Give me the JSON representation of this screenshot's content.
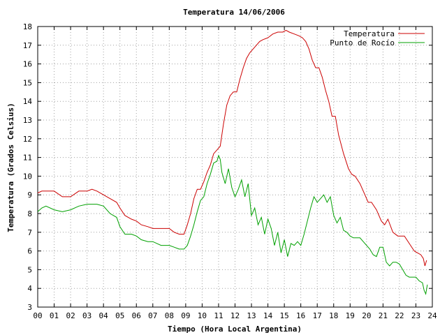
{
  "chart_data": {
    "type": "line",
    "title": "Temperatura 14/06/2006",
    "xlabel": "Tiempo (Hora Local Argentina)",
    "ylabel": "Temperatura (Grados Celsius)",
    "xlim": [
      0,
      24
    ],
    "ylim": [
      3,
      18
    ],
    "x_ticks": [
      "00",
      "01",
      "02",
      "03",
      "04",
      "05",
      "06",
      "07",
      "08",
      "09",
      "10",
      "11",
      "12",
      "13",
      "14",
      "15",
      "16",
      "17",
      "18",
      "19",
      "20",
      "21",
      "22",
      "23",
      "24"
    ],
    "y_ticks": [
      "3",
      "4",
      "5",
      "6",
      "7",
      "8",
      "9",
      "10",
      "11",
      "12",
      "13",
      "14",
      "15",
      "16",
      "17",
      "18"
    ],
    "grid": true,
    "legend_position": "top-right",
    "series": [
      {
        "name": "Temperatura",
        "color": "#cc0000",
        "x": [
          0.0,
          0.25,
          0.5,
          1.0,
          1.5,
          2.0,
          2.5,
          3.0,
          3.3,
          3.6,
          4.0,
          4.4,
          4.8,
          5.0,
          5.3,
          5.7,
          6.0,
          6.3,
          6.7,
          7.0,
          7.5,
          8.0,
          8.3,
          8.6,
          8.9,
          9.1,
          9.3,
          9.5,
          9.7,
          9.9,
          10.1,
          10.3,
          10.5,
          10.7,
          10.9,
          11.1,
          11.3,
          11.5,
          11.7,
          11.9,
          12.1,
          12.3,
          12.5,
          12.7,
          12.9,
          13.1,
          13.3,
          13.5,
          13.7,
          14.0,
          14.3,
          14.6,
          14.9,
          15.1,
          15.3,
          15.6,
          15.9,
          16.1,
          16.3,
          16.5,
          16.7,
          16.9,
          17.1,
          17.3,
          17.5,
          17.7,
          17.9,
          18.1,
          18.3,
          18.6,
          18.9,
          19.1,
          19.3,
          19.6,
          19.9,
          20.1,
          20.3,
          20.6,
          20.9,
          21.1,
          21.3,
          21.6,
          21.9,
          22.1,
          22.3,
          22.6,
          22.9,
          23.1,
          23.3,
          23.45,
          23.55,
          23.65
        ],
        "y": [
          9.1,
          9.2,
          9.2,
          9.2,
          8.9,
          8.9,
          9.2,
          9.2,
          9.3,
          9.2,
          9.0,
          8.8,
          8.6,
          8.3,
          7.9,
          7.7,
          7.6,
          7.4,
          7.3,
          7.2,
          7.2,
          7.2,
          7.0,
          6.9,
          6.9,
          7.4,
          8.0,
          8.8,
          9.3,
          9.3,
          9.7,
          10.2,
          10.6,
          11.2,
          11.4,
          11.6,
          12.8,
          13.8,
          14.3,
          14.5,
          14.5,
          15.2,
          15.8,
          16.3,
          16.6,
          16.8,
          17.0,
          17.2,
          17.3,
          17.4,
          17.6,
          17.7,
          17.7,
          17.8,
          17.7,
          17.6,
          17.5,
          17.4,
          17.2,
          16.8,
          16.2,
          15.8,
          15.8,
          15.3,
          14.6,
          14.0,
          13.2,
          13.2,
          12.2,
          11.2,
          10.4,
          10.1,
          10.0,
          9.6,
          9.0,
          8.6,
          8.6,
          8.2,
          7.6,
          7.4,
          7.7,
          7.0,
          6.8,
          6.8,
          6.8,
          6.4,
          6.0,
          5.9,
          5.8,
          5.6,
          5.2,
          5.5
        ]
      },
      {
        "name": "Punto de Rocío",
        "color": "#00a000",
        "x": [
          0.0,
          0.25,
          0.5,
          1.0,
          1.5,
          2.0,
          2.5,
          3.0,
          3.3,
          3.6,
          4.0,
          4.4,
          4.8,
          5.0,
          5.3,
          5.7,
          6.0,
          6.3,
          6.7,
          7.0,
          7.5,
          8.0,
          8.3,
          8.6,
          8.9,
          9.1,
          9.3,
          9.5,
          9.7,
          9.9,
          10.1,
          10.3,
          10.5,
          10.7,
          10.9,
          11.0,
          11.1,
          11.2,
          11.4,
          11.6,
          11.8,
          12.0,
          12.2,
          12.4,
          12.6,
          12.8,
          13.0,
          13.2,
          13.4,
          13.6,
          13.8,
          14.0,
          14.2,
          14.4,
          14.6,
          14.8,
          15.0,
          15.2,
          15.4,
          15.6,
          15.8,
          16.0,
          16.2,
          16.4,
          16.6,
          16.8,
          17.0,
          17.2,
          17.4,
          17.6,
          17.8,
          18.0,
          18.2,
          18.4,
          18.6,
          18.8,
          19.0,
          19.2,
          19.4,
          19.6,
          19.8,
          20.0,
          20.2,
          20.4,
          20.6,
          20.8,
          21.0,
          21.2,
          21.4,
          21.6,
          21.8,
          22.0,
          22.2,
          22.4,
          22.6,
          22.8,
          23.0,
          23.2,
          23.4,
          23.5,
          23.6,
          23.7
        ],
        "y": [
          8.1,
          8.3,
          8.4,
          8.2,
          8.1,
          8.2,
          8.4,
          8.5,
          8.5,
          8.5,
          8.4,
          8.0,
          7.8,
          7.3,
          6.9,
          6.9,
          6.8,
          6.6,
          6.5,
          6.5,
          6.3,
          6.3,
          6.2,
          6.1,
          6.1,
          6.3,
          6.8,
          7.4,
          8.1,
          8.7,
          8.9,
          9.6,
          10.1,
          10.7,
          10.8,
          11.1,
          10.9,
          10.2,
          9.6,
          10.4,
          9.4,
          8.9,
          9.3,
          9.8,
          8.9,
          9.6,
          7.9,
          8.3,
          7.4,
          7.8,
          6.9,
          7.7,
          7.2,
          6.3,
          7.0,
          5.9,
          6.6,
          5.7,
          6.4,
          6.3,
          6.5,
          6.3,
          6.9,
          7.6,
          8.3,
          8.9,
          8.6,
          8.8,
          9.0,
          8.6,
          8.9,
          7.9,
          7.5,
          7.8,
          7.1,
          7.0,
          6.8,
          6.7,
          6.7,
          6.7,
          6.5,
          6.3,
          6.1,
          5.8,
          5.7,
          6.2,
          6.2,
          5.4,
          5.2,
          5.4,
          5.4,
          5.3,
          5.0,
          4.7,
          4.6,
          4.6,
          4.6,
          4.4,
          4.3,
          3.9,
          3.7,
          4.2
        ]
      }
    ]
  }
}
